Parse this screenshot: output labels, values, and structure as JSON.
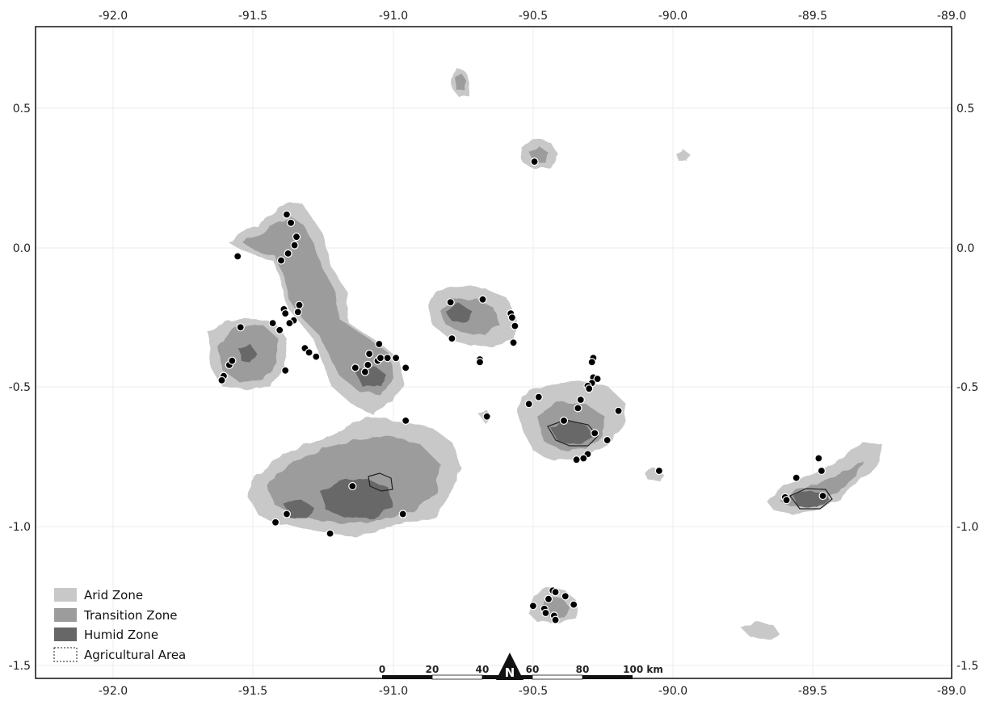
{
  "axes": {
    "x_ticks": [
      "-92.0",
      "-91.5",
      "-91.0",
      "-90.5",
      "-90.0",
      "-89.5",
      "-89.0"
    ],
    "y_ticks": [
      "0.5",
      "0.0",
      "-0.5",
      "-1.0",
      "-1.5"
    ],
    "x_range": [
      -92.25,
      -89.0
    ],
    "y_range": [
      -1.55,
      0.79
    ]
  },
  "legend": {
    "items": [
      {
        "label": "Arid Zone",
        "color": "#c8c8c8"
      },
      {
        "label": "Transition Zone",
        "color": "#9c9c9c"
      },
      {
        "label": "Humid Zone",
        "color": "#676767"
      },
      {
        "label": "Agricultural Area",
        "color": "#ffffff"
      }
    ]
  },
  "scale_bar": {
    "labels": [
      "0",
      "20",
      "40",
      "60",
      "80",
      "100 km"
    ]
  },
  "north_arrow": {
    "label": "N"
  },
  "colors": {
    "arid": "#c8c8c8",
    "transition": "#9c9c9c",
    "humid": "#676767",
    "points": "#000000"
  },
  "points": [
    [
      -91.38,
      0.12
    ],
    [
      -91.365,
      0.09
    ],
    [
      -91.345,
      0.04
    ],
    [
      -91.352,
      0.01
    ],
    [
      -91.375,
      -0.02
    ],
    [
      -91.4,
      -0.045
    ],
    [
      -91.555,
      -0.03
    ],
    [
      -91.39,
      -0.22
    ],
    [
      -91.385,
      -0.235
    ],
    [
      -91.335,
      -0.205
    ],
    [
      -91.34,
      -0.23
    ],
    [
      -91.355,
      -0.26
    ],
    [
      -91.37,
      -0.27
    ],
    [
      -91.605,
      -0.46
    ],
    [
      -91.612,
      -0.475
    ],
    [
      -91.585,
      -0.42
    ],
    [
      -91.575,
      -0.405
    ],
    [
      -91.545,
      -0.285
    ],
    [
      -91.43,
      -0.27
    ],
    [
      -91.405,
      -0.295
    ],
    [
      -91.385,
      -0.44
    ],
    [
      -91.315,
      -0.36
    ],
    [
      -91.3,
      -0.375
    ],
    [
      -91.275,
      -0.39
    ],
    [
      -91.135,
      -0.43
    ],
    [
      -91.1,
      -0.445
    ],
    [
      -91.09,
      -0.42
    ],
    [
      -91.085,
      -0.38
    ],
    [
      -91.055,
      -0.405
    ],
    [
      -91.045,
      -0.395
    ],
    [
      -91.02,
      -0.395
    ],
    [
      -90.99,
      -0.395
    ],
    [
      -91.05,
      -0.345
    ],
    [
      -90.955,
      -0.43
    ],
    [
      -90.955,
      -0.62
    ],
    [
      -91.145,
      -0.855
    ],
    [
      -91.38,
      -0.955
    ],
    [
      -91.42,
      -0.985
    ],
    [
      -91.225,
      -1.025
    ],
    [
      -90.965,
      -0.955
    ],
    [
      -90.495,
      0.31
    ],
    [
      -90.795,
      -0.195
    ],
    [
      -90.68,
      -0.185
    ],
    [
      -90.58,
      -0.235
    ],
    [
      -90.575,
      -0.25
    ],
    [
      -90.565,
      -0.28
    ],
    [
      -90.79,
      -0.325
    ],
    [
      -90.57,
      -0.34
    ],
    [
      -90.69,
      -0.4
    ],
    [
      -90.69,
      -0.41
    ],
    [
      -90.665,
      -0.605
    ],
    [
      -90.285,
      -0.395
    ],
    [
      -90.29,
      -0.41
    ],
    [
      -90.285,
      -0.465
    ],
    [
      -90.27,
      -0.47
    ],
    [
      -90.29,
      -0.485
    ],
    [
      -90.305,
      -0.495
    ],
    [
      -90.3,
      -0.505
    ],
    [
      -90.33,
      -0.545
    ],
    [
      -90.34,
      -0.575
    ],
    [
      -90.48,
      -0.535
    ],
    [
      -90.515,
      -0.56
    ],
    [
      -90.195,
      -0.585
    ],
    [
      -90.39,
      -0.62
    ],
    [
      -90.28,
      -0.665
    ],
    [
      -90.235,
      -0.69
    ],
    [
      -90.305,
      -0.74
    ],
    [
      -90.32,
      -0.755
    ],
    [
      -90.345,
      -0.76
    ],
    [
      -90.05,
      -0.8
    ],
    [
      -89.48,
      -0.755
    ],
    [
      -89.47,
      -0.8
    ],
    [
      -89.56,
      -0.825
    ],
    [
      -89.465,
      -0.89
    ],
    [
      -89.6,
      -0.895
    ],
    [
      -89.595,
      -0.905
    ],
    [
      -90.43,
      -1.23
    ],
    [
      -90.42,
      -1.235
    ],
    [
      -90.445,
      -1.26
    ],
    [
      -90.385,
      -1.25
    ],
    [
      -90.5,
      -1.285
    ],
    [
      -90.46,
      -1.295
    ],
    [
      -90.455,
      -1.31
    ],
    [
      -90.425,
      -1.32
    ],
    [
      -90.42,
      -1.335
    ],
    [
      -90.355,
      -1.28
    ]
  ]
}
